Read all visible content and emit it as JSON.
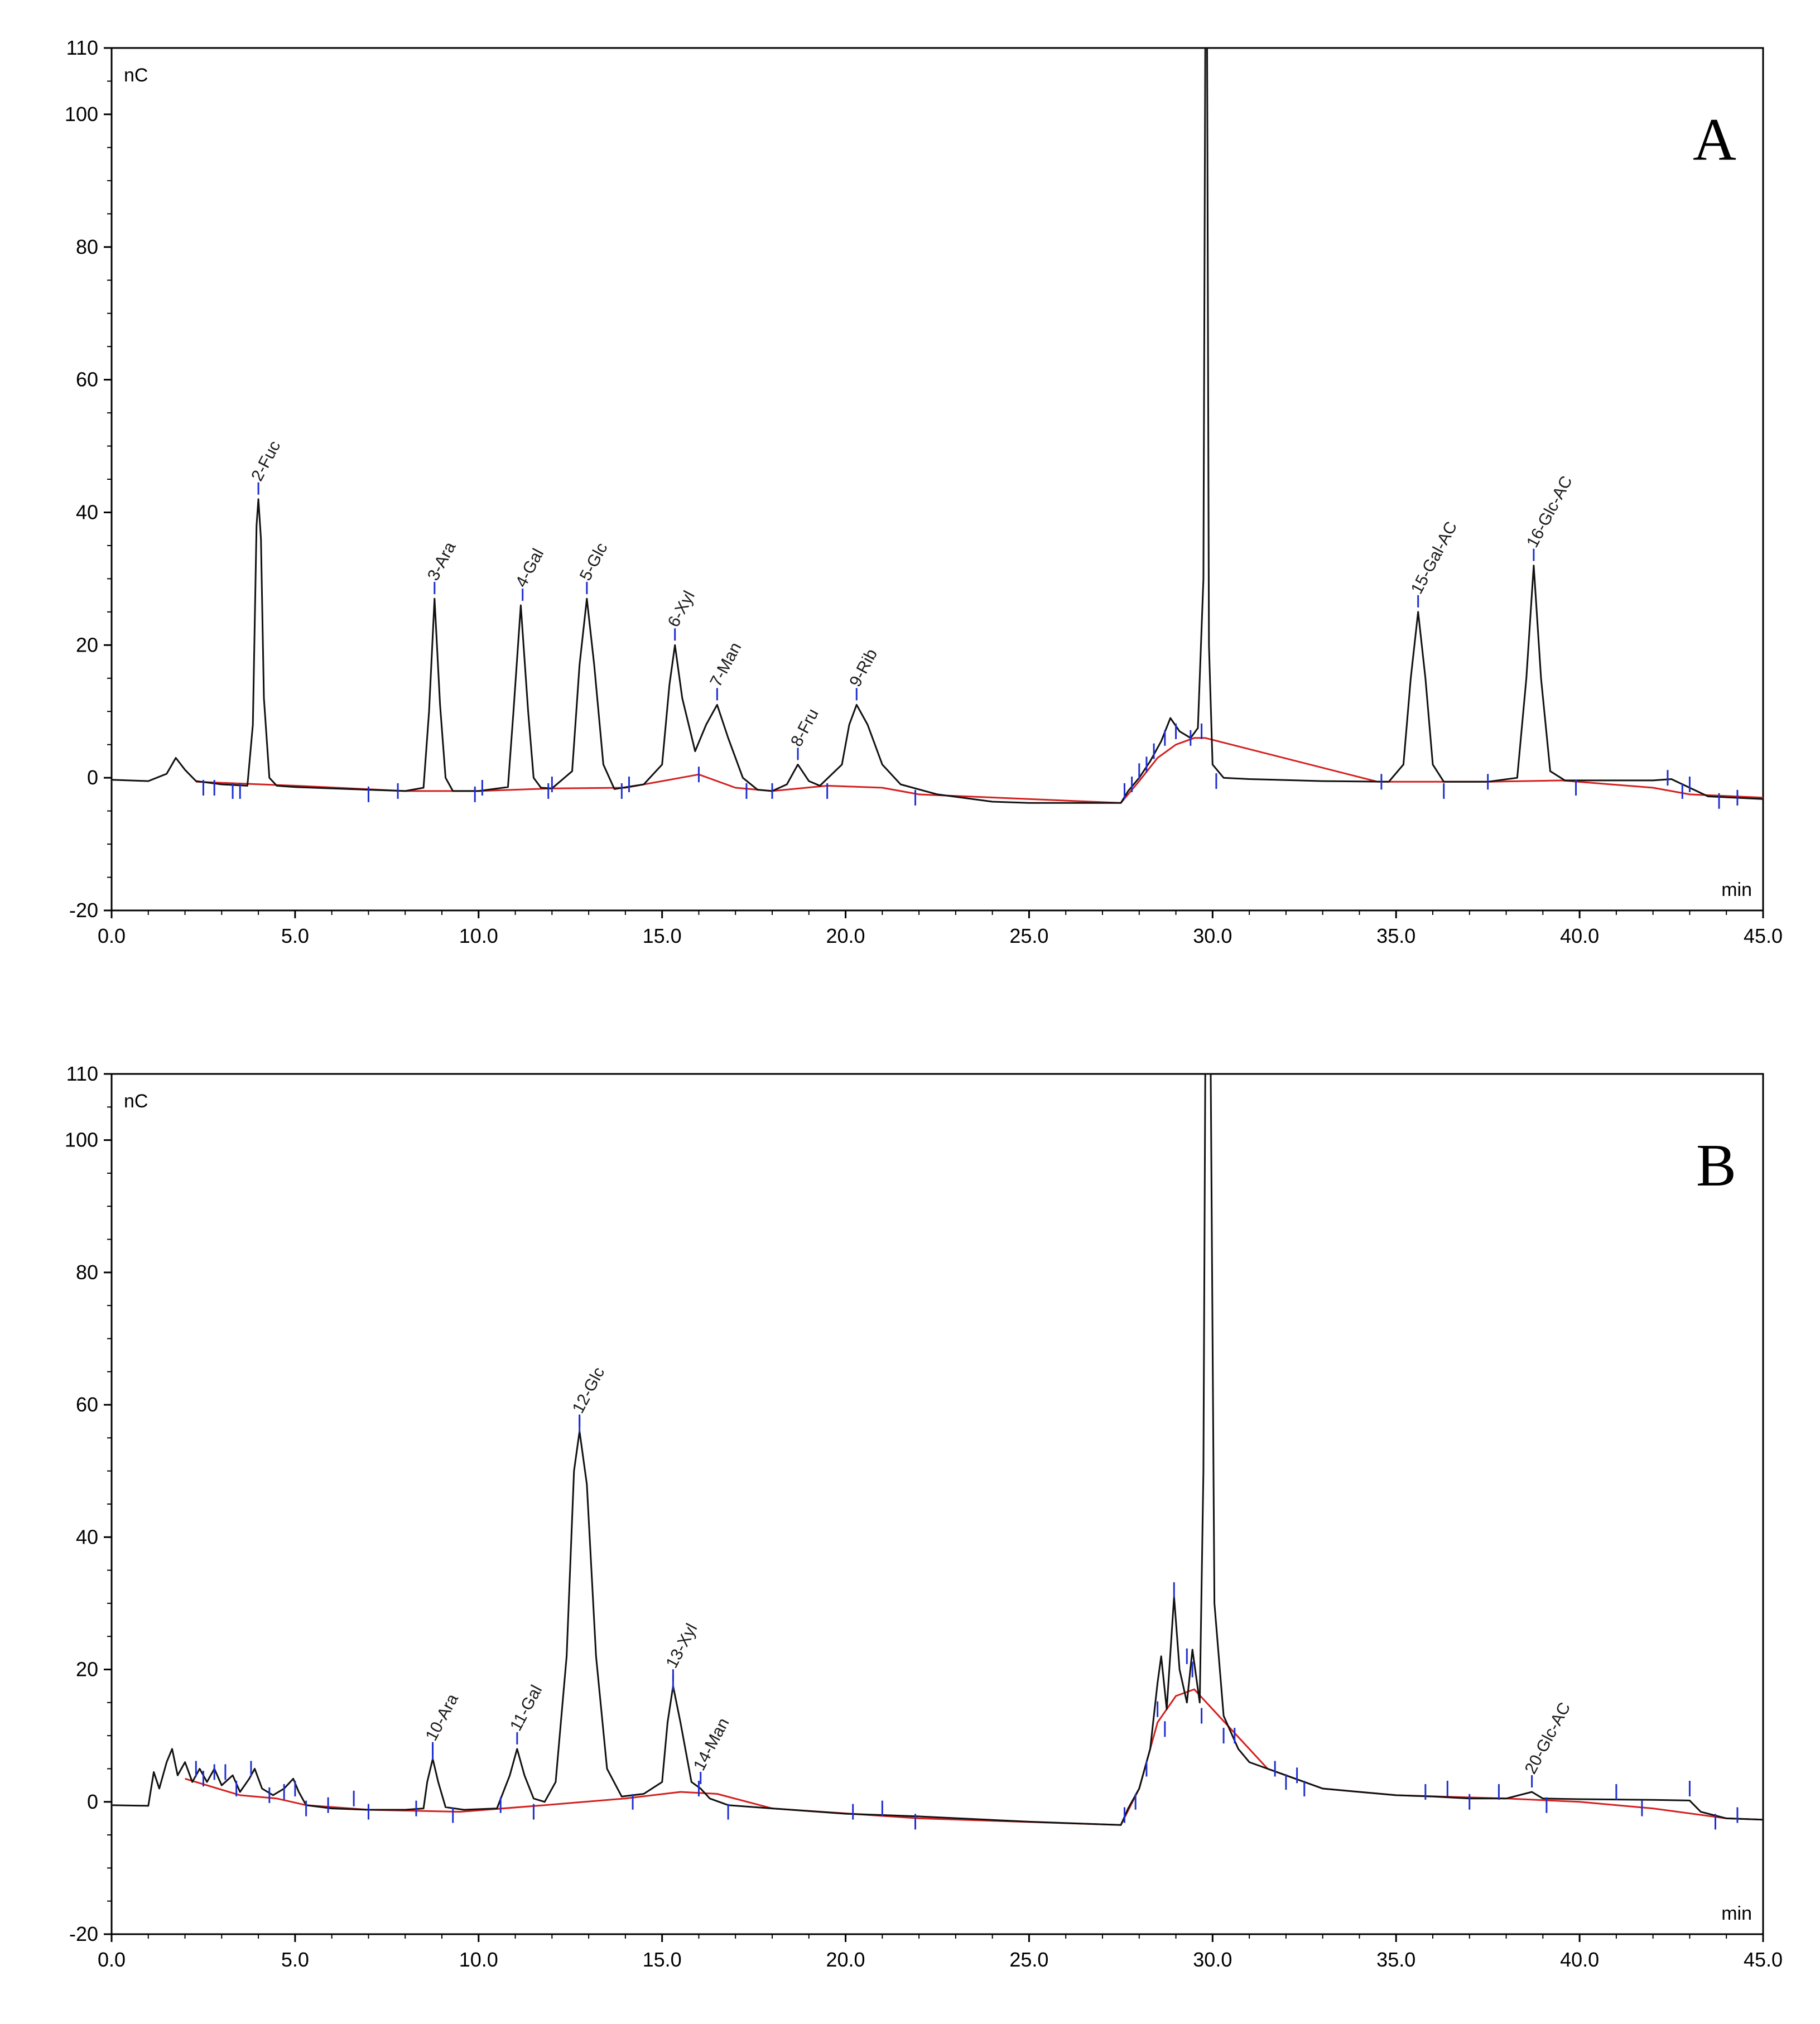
{
  "chart_data": [
    {
      "type": "line",
      "panel": "A",
      "y_unit": "nC",
      "x_unit": "min",
      "xlim": [
        0,
        45
      ],
      "ylim": [
        -20,
        110
      ],
      "x_ticks": [
        "0.0",
        "5.0",
        "10.0",
        "15.0",
        "20.0",
        "25.0",
        "30.0",
        "35.0",
        "40.0",
        "45.0"
      ],
      "y_ticks": [
        "-20",
        "0",
        "20",
        "40",
        "60",
        "80",
        "100",
        "110"
      ],
      "peaks": [
        {
          "label": "2-Fuc",
          "rt": 4.0,
          "height": 42
        },
        {
          "label": "3-Ara",
          "rt": 8.8,
          "height": 27
        },
        {
          "label": "4-Gal",
          "rt": 11.2,
          "height": 26
        },
        {
          "label": "5-Glc",
          "rt": 12.95,
          "height": 27
        },
        {
          "label": "6-Xyl",
          "rt": 15.35,
          "height": 20
        },
        {
          "label": "7-Man",
          "rt": 16.5,
          "height": 11
        },
        {
          "label": "8-Fru",
          "rt": 18.7,
          "height": 2
        },
        {
          "label": "9-Rib",
          "rt": 20.3,
          "height": 11
        },
        {
          "label": "15-Gal-AC",
          "rt": 35.6,
          "height": 25
        },
        {
          "label": "16-Glc-AC",
          "rt": 38.75,
          "height": 32
        }
      ],
      "trace": [
        [
          0,
          -0.3
        ],
        [
          1.0,
          -0.5
        ],
        [
          1.5,
          0.6
        ],
        [
          1.75,
          3.0
        ],
        [
          2.0,
          1.2
        ],
        [
          2.3,
          -0.5
        ],
        [
          3.0,
          -1.0
        ],
        [
          3.7,
          -1.2
        ],
        [
          3.85,
          8
        ],
        [
          3.95,
          38
        ],
        [
          4.0,
          42
        ],
        [
          4.07,
          36
        ],
        [
          4.15,
          12
        ],
        [
          4.3,
          0
        ],
        [
          4.5,
          -1.2
        ],
        [
          5.0,
          -1.4
        ],
        [
          7.0,
          -1.8
        ],
        [
          8.0,
          -2.0
        ],
        [
          8.5,
          -1.5
        ],
        [
          8.65,
          10
        ],
        [
          8.8,
          27
        ],
        [
          8.95,
          11
        ],
        [
          9.1,
          0
        ],
        [
          9.3,
          -2.0
        ],
        [
          10.0,
          -2.0
        ],
        [
          10.8,
          -1.4
        ],
        [
          10.95,
          10
        ],
        [
          11.15,
          26
        ],
        [
          11.35,
          10
        ],
        [
          11.5,
          0
        ],
        [
          11.7,
          -1.5
        ],
        [
          12.0,
          -1.6
        ],
        [
          12.55,
          1
        ],
        [
          12.75,
          17
        ],
        [
          12.95,
          27
        ],
        [
          13.15,
          17
        ],
        [
          13.4,
          2
        ],
        [
          13.7,
          -1.7
        ],
        [
          14.5,
          -1.0
        ],
        [
          15.0,
          2
        ],
        [
          15.2,
          14
        ],
        [
          15.35,
          20
        ],
        [
          15.55,
          12
        ],
        [
          15.9,
          4
        ],
        [
          16.2,
          8
        ],
        [
          16.5,
          11
        ],
        [
          16.8,
          6
        ],
        [
          17.2,
          0
        ],
        [
          17.6,
          -1.8
        ],
        [
          18.0,
          -2.0
        ],
        [
          18.4,
          -1.0
        ],
        [
          18.7,
          2
        ],
        [
          19.0,
          -0.5
        ],
        [
          19.3,
          -1.2
        ],
        [
          19.9,
          2
        ],
        [
          20.1,
          8
        ],
        [
          20.3,
          11
        ],
        [
          20.6,
          8
        ],
        [
          21.0,
          2
        ],
        [
          21.5,
          -1.0
        ],
        [
          22.5,
          -2.5
        ],
        [
          24.0,
          -3.6
        ],
        [
          25.0,
          -3.8
        ],
        [
          27.5,
          -3.8
        ],
        [
          27.7,
          -2.0
        ],
        [
          28.0,
          0
        ],
        [
          28.3,
          2.5
        ],
        [
          28.6,
          5.5
        ],
        [
          28.85,
          9.0
        ],
        [
          29.1,
          7.0
        ],
        [
          29.4,
          6.0
        ],
        [
          29.6,
          7.5
        ],
        [
          29.75,
          30
        ],
        [
          29.8,
          110
        ],
        [
          29.85,
          110
        ],
        [
          29.9,
          20
        ],
        [
          30.0,
          2
        ],
        [
          30.3,
          0
        ],
        [
          31.0,
          -0.2
        ],
        [
          33.0,
          -0.5
        ],
        [
          34.8,
          -0.6
        ],
        [
          35.2,
          2
        ],
        [
          35.4,
          15
        ],
        [
          35.6,
          25
        ],
        [
          35.8,
          15
        ],
        [
          36.0,
          2
        ],
        [
          36.3,
          -0.6
        ],
        [
          37.5,
          -0.6
        ],
        [
          38.3,
          0
        ],
        [
          38.55,
          15
        ],
        [
          38.75,
          32
        ],
        [
          38.95,
          15
        ],
        [
          39.2,
          1
        ],
        [
          39.6,
          -0.4
        ],
        [
          42.0,
          -0.4
        ],
        [
          42.5,
          -0.2
        ],
        [
          43.0,
          -1.5
        ],
        [
          43.5,
          -2.8
        ],
        [
          45.0,
          -3.2
        ]
      ],
      "baseline": [
        [
          2.3,
          -0.6
        ],
        [
          5.0,
          -1.2
        ],
        [
          8.0,
          -2.0
        ],
        [
          10.0,
          -2.0
        ],
        [
          12.0,
          -1.6
        ],
        [
          14.0,
          -1.5
        ],
        [
          15.5,
          0
        ],
        [
          16.0,
          0.5
        ],
        [
          17.0,
          -1.5
        ],
        [
          18.0,
          -2.0
        ],
        [
          19.5,
          -1.2
        ],
        [
          21.0,
          -1.5
        ],
        [
          22.0,
          -2.5
        ],
        [
          27.5,
          -3.8
        ],
        [
          28.0,
          -0.5
        ],
        [
          28.5,
          3
        ],
        [
          29.0,
          5
        ],
        [
          29.5,
          6
        ],
        [
          29.8,
          6
        ],
        [
          34.5,
          -0.6
        ],
        [
          37.5,
          -0.6
        ],
        [
          39.5,
          -0.4
        ],
        [
          42.0,
          -1.5
        ],
        [
          43.0,
          -2.5
        ],
        [
          45.0,
          -3.0
        ]
      ],
      "markers": [
        [
          2.5,
          -1.5
        ],
        [
          2.8,
          -1.5
        ],
        [
          3.3,
          -2
        ],
        [
          3.5,
          -2
        ],
        [
          7.0,
          -2.5
        ],
        [
          7.8,
          -2
        ],
        [
          9.9,
          -2.5
        ],
        [
          10.1,
          -1.5
        ],
        [
          11.9,
          -2
        ],
        [
          12.0,
          -1
        ],
        [
          13.9,
          -2
        ],
        [
          14.1,
          -1
        ],
        [
          16.0,
          0.5
        ],
        [
          17.3,
          -2
        ],
        [
          18.0,
          -2
        ],
        [
          19.5,
          -2
        ],
        [
          21.9,
          -3
        ],
        [
          27.6,
          -2
        ],
        [
          27.8,
          -1
        ],
        [
          28.0,
          1
        ],
        [
          28.2,
          2
        ],
        [
          28.4,
          4
        ],
        [
          28.7,
          6
        ],
        [
          29.0,
          7
        ],
        [
          29.4,
          6
        ],
        [
          29.7,
          7
        ],
        [
          30.1,
          -0.5
        ],
        [
          34.6,
          -0.6
        ],
        [
          36.3,
          -2
        ],
        [
          37.5,
          -0.6
        ],
        [
          39.9,
          -1.5
        ],
        [
          42.4,
          0
        ],
        [
          42.8,
          -2
        ],
        [
          43.0,
          -1
        ],
        [
          43.8,
          -3.5
        ],
        [
          44.3,
          -3
        ]
      ]
    },
    {
      "type": "line",
      "panel": "B",
      "y_unit": "nC",
      "x_unit": "min",
      "xlim": [
        0,
        45
      ],
      "ylim": [
        -20,
        110
      ],
      "x_ticks": [
        "0.0",
        "5.0",
        "10.0",
        "15.0",
        "20.0",
        "25.0",
        "30.0",
        "35.0",
        "40.0",
        "45.0"
      ],
      "y_ticks": [
        "-20",
        "0",
        "20",
        "40",
        "60",
        "80",
        "100",
        "110"
      ],
      "peaks": [
        {
          "label": "10-Ara",
          "rt": 8.75,
          "height": 6.5
        },
        {
          "label": "11-Gal",
          "rt": 11.05,
          "height": 8
        },
        {
          "label": "12-Glc",
          "rt": 12.75,
          "height": 56
        },
        {
          "label": "13-Xyl",
          "rt": 15.3,
          "height": 17.5
        },
        {
          "label": "14-Man",
          "rt": 16.05,
          "height": 2
        },
        {
          "label": "20-Glc-AC",
          "rt": 38.7,
          "height": 1.5
        }
      ],
      "trace": [
        [
          0,
          -0.5
        ],
        [
          1.0,
          -0.6
        ],
        [
          1.15,
          4.5
        ],
        [
          1.3,
          2
        ],
        [
          1.5,
          6
        ],
        [
          1.65,
          8
        ],
        [
          1.8,
          4
        ],
        [
          2.0,
          6
        ],
        [
          2.2,
          3
        ],
        [
          2.4,
          5
        ],
        [
          2.6,
          3
        ],
        [
          2.8,
          5
        ],
        [
          3.0,
          2.5
        ],
        [
          3.3,
          4
        ],
        [
          3.5,
          1.5
        ],
        [
          3.75,
          3.5
        ],
        [
          3.9,
          5
        ],
        [
          4.1,
          2
        ],
        [
          4.4,
          1
        ],
        [
          4.7,
          2
        ],
        [
          4.95,
          3.5
        ],
        [
          5.1,
          1.5
        ],
        [
          5.3,
          -0.5
        ],
        [
          6.0,
          -1.0
        ],
        [
          7.0,
          -1.2
        ],
        [
          8.0,
          -1.2
        ],
        [
          8.5,
          -1.0
        ],
        [
          8.6,
          3
        ],
        [
          8.75,
          6.5
        ],
        [
          8.9,
          3
        ],
        [
          9.1,
          -0.8
        ],
        [
          9.6,
          -1.2
        ],
        [
          10.5,
          -1.0
        ],
        [
          10.85,
          4
        ],
        [
          11.05,
          8
        ],
        [
          11.25,
          4
        ],
        [
          11.5,
          0.5
        ],
        [
          11.8,
          0
        ],
        [
          12.1,
          3
        ],
        [
          12.4,
          22
        ],
        [
          12.6,
          50
        ],
        [
          12.75,
          56
        ],
        [
          12.95,
          48
        ],
        [
          13.2,
          22
        ],
        [
          13.5,
          5
        ],
        [
          13.9,
          0.8
        ],
        [
          14.5,
          1.2
        ],
        [
          15.0,
          3
        ],
        [
          15.15,
          12
        ],
        [
          15.3,
          17.5
        ],
        [
          15.5,
          12
        ],
        [
          15.8,
          3
        ],
        [
          16.05,
          2
        ],
        [
          16.3,
          0.5
        ],
        [
          16.8,
          -0.5
        ],
        [
          18.0,
          -1.0
        ],
        [
          20.0,
          -1.8
        ],
        [
          22.0,
          -2.2
        ],
        [
          25.0,
          -3.0
        ],
        [
          27.5,
          -3.5
        ],
        [
          27.7,
          -1
        ],
        [
          28.0,
          2
        ],
        [
          28.3,
          8
        ],
        [
          28.5,
          18
        ],
        [
          28.6,
          22
        ],
        [
          28.75,
          14
        ],
        [
          28.95,
          31
        ],
        [
          29.1,
          20
        ],
        [
          29.3,
          15
        ],
        [
          29.45,
          23
        ],
        [
          29.65,
          15
        ],
        [
          29.75,
          50
        ],
        [
          29.8,
          110
        ],
        [
          29.95,
          110
        ],
        [
          30.05,
          30
        ],
        [
          30.3,
          13
        ],
        [
          30.7,
          8
        ],
        [
          31.0,
          6
        ],
        [
          31.5,
          5
        ],
        [
          32.0,
          4
        ],
        [
          33.0,
          2
        ],
        [
          34.0,
          1.5
        ],
        [
          35.0,
          1.0
        ],
        [
          36.0,
          0.8
        ],
        [
          37.0,
          0.5
        ],
        [
          38.0,
          0.5
        ],
        [
          38.7,
          1.5
        ],
        [
          39.0,
          0.5
        ],
        [
          40.0,
          0.4
        ],
        [
          42.0,
          0.3
        ],
        [
          43.0,
          0.2
        ],
        [
          43.3,
          -1.5
        ],
        [
          44.0,
          -2.5
        ],
        [
          45.0,
          -2.7
        ]
      ],
      "baseline": [
        [
          2.0,
          3.5
        ],
        [
          3.5,
          1
        ],
        [
          4.5,
          0.5
        ],
        [
          5.3,
          -0.5
        ],
        [
          7.0,
          -1.2
        ],
        [
          9.5,
          -1.5
        ],
        [
          11.8,
          -0.5
        ],
        [
          14.0,
          0.5
        ],
        [
          15.5,
          1.5
        ],
        [
          16.5,
          1.2
        ],
        [
          18.0,
          -1
        ],
        [
          22.0,
          -2.5
        ],
        [
          27.5,
          -3.5
        ],
        [
          28.0,
          2
        ],
        [
          28.5,
          12
        ],
        [
          29.0,
          16
        ],
        [
          29.5,
          17
        ],
        [
          30.0,
          14
        ],
        [
          30.5,
          11
        ],
        [
          31.5,
          5
        ],
        [
          33.0,
          2
        ],
        [
          35.0,
          1
        ],
        [
          38.0,
          0.5
        ],
        [
          40.0,
          0
        ],
        [
          42.0,
          -1
        ],
        [
          44.0,
          -2.5
        ],
        [
          45.0,
          -2.7
        ]
      ],
      "markers": [
        [
          2.3,
          5
        ],
        [
          2.5,
          3.5
        ],
        [
          2.8,
          4.5
        ],
        [
          3.1,
          4.5
        ],
        [
          3.4,
          2
        ],
        [
          3.8,
          5
        ],
        [
          4.3,
          1
        ],
        [
          4.7,
          1.5
        ],
        [
          5.0,
          2
        ],
        [
          5.3,
          -1
        ],
        [
          5.9,
          -0.5
        ],
        [
          6.6,
          0.5
        ],
        [
          7.0,
          -1.5
        ],
        [
          8.3,
          -1
        ],
        [
          8.75,
          7.5
        ],
        [
          9.3,
          -2
        ],
        [
          10.6,
          -0.5
        ],
        [
          11.5,
          -1.5
        ],
        [
          12.75,
          57
        ],
        [
          14.2,
          0
        ],
        [
          15.3,
          18
        ],
        [
          16.0,
          2
        ],
        [
          16.8,
          -1.5
        ],
        [
          20.2,
          -1.5
        ],
        [
          21.0,
          -1
        ],
        [
          21.9,
          -3
        ],
        [
          27.6,
          -2
        ],
        [
          27.9,
          0
        ],
        [
          28.2,
          5
        ],
        [
          28.5,
          14
        ],
        [
          28.7,
          11
        ],
        [
          28.95,
          32
        ],
        [
          29.3,
          22
        ],
        [
          29.45,
          20
        ],
        [
          29.7,
          13
        ],
        [
          30.3,
          10
        ],
        [
          30.6,
          10
        ],
        [
          31.7,
          5
        ],
        [
          32.0,
          3
        ],
        [
          32.3,
          4
        ],
        [
          32.5,
          2
        ],
        [
          35.8,
          1.5
        ],
        [
          36.4,
          2
        ],
        [
          37.0,
          0
        ],
        [
          37.8,
          1.5
        ],
        [
          39.1,
          -0.5
        ],
        [
          41.0,
          1.5
        ],
        [
          41.7,
          -1
        ],
        [
          43.0,
          2
        ],
        [
          43.7,
          -3
        ],
        [
          44.3,
          -2
        ]
      ]
    }
  ]
}
